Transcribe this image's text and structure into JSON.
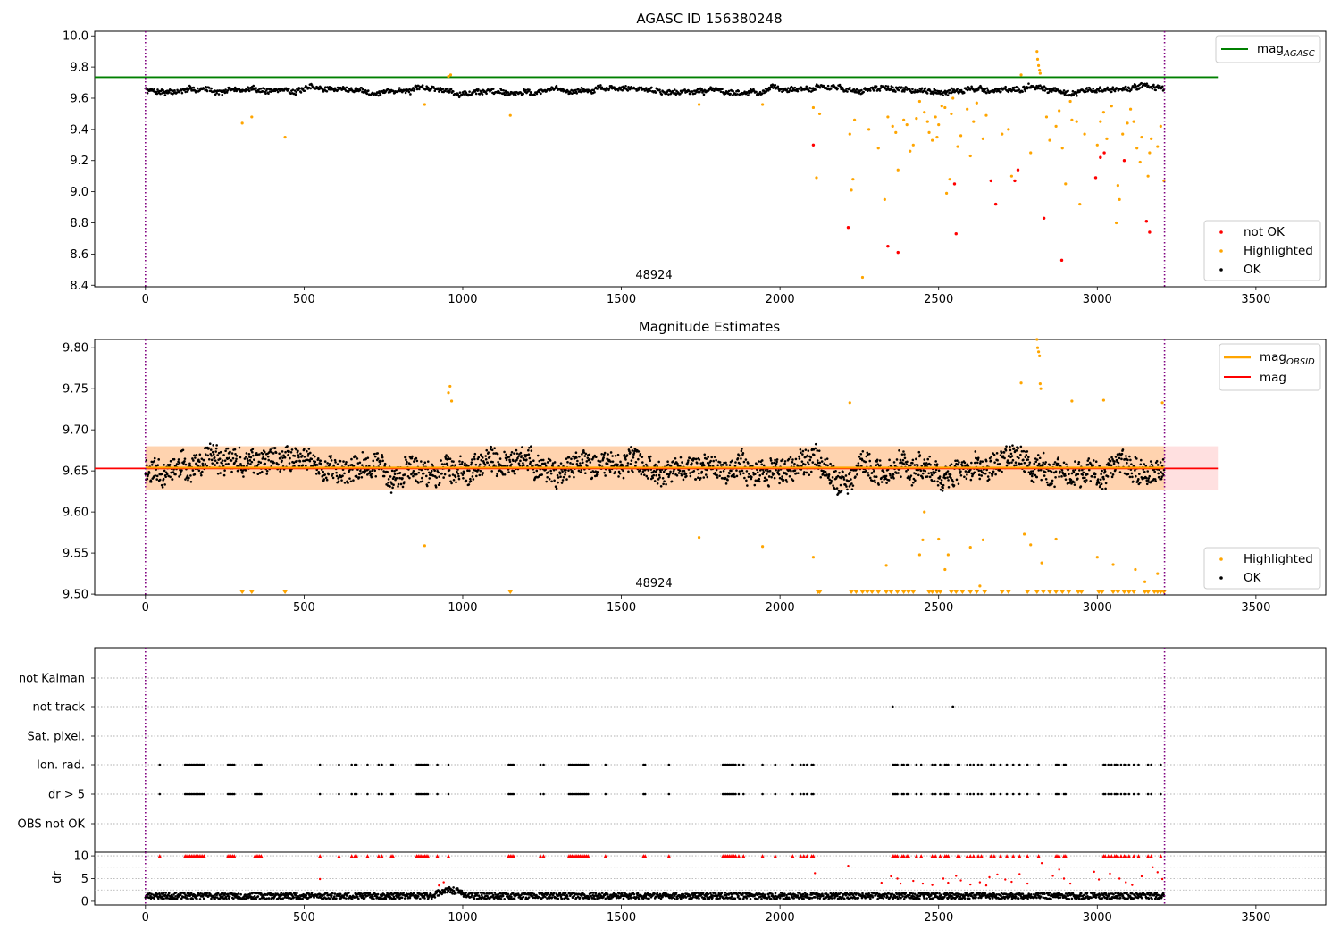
{
  "chart_data": [
    {
      "type": "scatter",
      "title": "AGASC ID 156380248",
      "xlim": [
        -160,
        3720
      ],
      "ylim": [
        8.39,
        10.03
      ],
      "xticks": [
        0,
        500,
        1000,
        1500,
        2000,
        2500,
        3000,
        3500
      ],
      "yticks": [
        8.4,
        8.6,
        8.8,
        9.0,
        9.2,
        9.4,
        9.6,
        9.8,
        10.0
      ],
      "ytick_labels": [
        "8.4",
        "8.6",
        "8.8",
        "9.0",
        "9.2",
        "9.4",
        "9.6",
        "9.8",
        "10.0"
      ],
      "obsid_label": "48924",
      "obsid_label_x": 1605,
      "obs_bounds": [
        0,
        3212
      ],
      "mag_agasc": 9.735,
      "mag_agasc_x_end": 3380,
      "ok_mean": 9.654,
      "ok_noise": 0.018,
      "legend": {
        "line_label": "mag",
        "line_sub": "AGASC",
        "not_ok": "not OK",
        "highlighted": "Highlighted",
        "ok": "OK"
      },
      "highlighted_points": [
        [
          305,
          9.44
        ],
        [
          335,
          9.48
        ],
        [
          440,
          9.35
        ],
        [
          880,
          9.56
        ],
        [
          955,
          9.74
        ],
        [
          962,
          9.75
        ],
        [
          1150,
          9.49
        ],
        [
          1745,
          9.56
        ],
        [
          1945,
          9.56
        ],
        [
          2105,
          9.54
        ],
        [
          2115,
          9.09
        ],
        [
          2125,
          9.5
        ],
        [
          2220,
          9.37
        ],
        [
          2225,
          9.01
        ],
        [
          2230,
          9.08
        ],
        [
          2235,
          9.46
        ],
        [
          2260,
          8.45
        ],
        [
          2280,
          9.4
        ],
        [
          2310,
          9.28
        ],
        [
          2330,
          8.95
        ],
        [
          2340,
          9.48
        ],
        [
          2355,
          9.42
        ],
        [
          2365,
          9.38
        ],
        [
          2372,
          9.14
        ],
        [
          2390,
          9.46
        ],
        [
          2400,
          9.43
        ],
        [
          2410,
          9.26
        ],
        [
          2420,
          9.3
        ],
        [
          2430,
          9.47
        ],
        [
          2440,
          9.58
        ],
        [
          2455,
          9.51
        ],
        [
          2465,
          9.45
        ],
        [
          2470,
          9.38
        ],
        [
          2480,
          9.33
        ],
        [
          2490,
          9.48
        ],
        [
          2495,
          9.35
        ],
        [
          2500,
          9.43
        ],
        [
          2510,
          9.55
        ],
        [
          2520,
          9.54
        ],
        [
          2525,
          8.99
        ],
        [
          2535,
          9.08
        ],
        [
          2540,
          9.5
        ],
        [
          2545,
          9.6
        ],
        [
          2560,
          9.29
        ],
        [
          2570,
          9.36
        ],
        [
          2590,
          9.53
        ],
        [
          2600,
          9.23
        ],
        [
          2610,
          9.45
        ],
        [
          2620,
          9.57
        ],
        [
          2640,
          9.34
        ],
        [
          2650,
          9.49
        ],
        [
          2700,
          9.37
        ],
        [
          2720,
          9.4
        ],
        [
          2730,
          9.1
        ],
        [
          2760,
          9.75
        ],
        [
          2790,
          9.25
        ],
        [
          2810,
          9.9
        ],
        [
          2812,
          9.85
        ],
        [
          2815,
          9.81
        ],
        [
          2818,
          9.78
        ],
        [
          2820,
          9.76
        ],
        [
          2840,
          9.48
        ],
        [
          2850,
          9.33
        ],
        [
          2870,
          9.42
        ],
        [
          2880,
          9.52
        ],
        [
          2890,
          9.28
        ],
        [
          2900,
          9.05
        ],
        [
          2915,
          9.58
        ],
        [
          2920,
          9.46
        ],
        [
          2935,
          9.45
        ],
        [
          2945,
          8.92
        ],
        [
          2960,
          9.37
        ],
        [
          3000,
          9.3
        ],
        [
          3010,
          9.45
        ],
        [
          3020,
          9.51
        ],
        [
          3030,
          9.34
        ],
        [
          3045,
          9.55
        ],
        [
          3060,
          8.8
        ],
        [
          3065,
          9.04
        ],
        [
          3070,
          8.95
        ],
        [
          3080,
          9.37
        ],
        [
          3095,
          9.44
        ],
        [
          3105,
          9.53
        ],
        [
          3115,
          9.45
        ],
        [
          3125,
          9.28
        ],
        [
          3135,
          9.19
        ],
        [
          3140,
          9.35
        ],
        [
          3160,
          9.1
        ],
        [
          3165,
          9.25
        ],
        [
          3170,
          9.34
        ],
        [
          3190,
          9.29
        ],
        [
          3200,
          9.42
        ],
        [
          3210,
          9.07
        ]
      ],
      "not_ok_points": [
        [
          2105,
          9.3
        ],
        [
          2215,
          8.77
        ],
        [
          2340,
          8.65
        ],
        [
          2372,
          8.61
        ],
        [
          2550,
          9.05
        ],
        [
          2555,
          8.73
        ],
        [
          2665,
          9.07
        ],
        [
          2680,
          8.92
        ],
        [
          2740,
          9.07
        ],
        [
          2750,
          9.14
        ],
        [
          2832,
          8.83
        ],
        [
          2888,
          8.56
        ],
        [
          2995,
          9.09
        ],
        [
          3010,
          9.22
        ],
        [
          3022,
          9.25
        ],
        [
          3085,
          9.2
        ],
        [
          3155,
          8.81
        ],
        [
          3165,
          8.74
        ]
      ]
    },
    {
      "type": "scatter",
      "title": "Magnitude Estimates",
      "xlim": [
        -160,
        3720
      ],
      "ylim": [
        9.499,
        9.81
      ],
      "xticks": [
        0,
        500,
        1000,
        1500,
        2000,
        2500,
        3000,
        3500
      ],
      "yticks": [
        9.5,
        9.55,
        9.6,
        9.65,
        9.7,
        9.75,
        9.8
      ],
      "ytick_labels": [
        "9.50",
        "9.55",
        "9.60",
        "9.65",
        "9.70",
        "9.75",
        "9.80"
      ],
      "obsid_label": "48924",
      "obsid_label_x": 1605,
      "obs_bounds": [
        0,
        3212
      ],
      "mag_obsid": 9.654,
      "mag": 9.653,
      "band_orange": [
        9.627,
        9.68
      ],
      "band_pink": [
        9.627,
        9.68
      ],
      "band_x_end": 3380,
      "ok_mean": 9.654,
      "ok_noise": 0.022,
      "legend": {
        "obsid_label": "mag",
        "obsid_sub": "OBSID",
        "mag_label": "mag",
        "highlighted": "Highlighted",
        "ok": "OK"
      },
      "highlighted_points": [
        [
          880,
          9.559
        ],
        [
          955,
          9.745
        ],
        [
          960,
          9.753
        ],
        [
          965,
          9.735
        ],
        [
          1945,
          9.558
        ],
        [
          1745,
          9.569
        ],
        [
          2105,
          9.545
        ],
        [
          2220,
          9.733
        ],
        [
          2335,
          9.535
        ],
        [
          2440,
          9.548
        ],
        [
          2450,
          9.566
        ],
        [
          2455,
          9.6
        ],
        [
          2500,
          9.567
        ],
        [
          2520,
          9.53
        ],
        [
          2530,
          9.548
        ],
        [
          2600,
          9.557
        ],
        [
          2630,
          9.51
        ],
        [
          2640,
          9.566
        ],
        [
          2760,
          9.757
        ],
        [
          2770,
          9.573
        ],
        [
          2790,
          9.56
        ],
        [
          2810,
          9.81
        ],
        [
          2812,
          9.8
        ],
        [
          2815,
          9.795
        ],
        [
          2818,
          9.79
        ],
        [
          2820,
          9.756
        ],
        [
          2822,
          9.75
        ],
        [
          2825,
          9.538
        ],
        [
          2870,
          9.567
        ],
        [
          2920,
          9.735
        ],
        [
          3000,
          9.545
        ],
        [
          3020,
          9.736
        ],
        [
          3050,
          9.536
        ],
        [
          3120,
          9.53
        ],
        [
          3150,
          9.515
        ],
        [
          3190,
          9.525
        ],
        [
          3205,
          9.733
        ]
      ],
      "floor_markers_x": [
        305,
        335,
        440,
        1150,
        2120,
        2125,
        2225,
        2240,
        2260,
        2275,
        2290,
        2310,
        2335,
        2350,
        2370,
        2390,
        2405,
        2420,
        2470,
        2480,
        2495,
        2505,
        2540,
        2555,
        2575,
        2600,
        2620,
        2645,
        2700,
        2720,
        2780,
        2810,
        2830,
        2850,
        2870,
        2890,
        2910,
        2940,
        2950,
        3005,
        3015,
        3050,
        3065,
        3085,
        3100,
        3115,
        3150,
        3160,
        3180,
        3190,
        3200,
        3210
      ]
    },
    {
      "type": "scatter",
      "title": "",
      "xlim": [
        -160,
        3720
      ],
      "xticks": [
        0,
        500,
        1000,
        1500,
        2000,
        2500,
        3000,
        3500
      ],
      "categories": [
        "not Kalman",
        "not track",
        "Sat. pixel.",
        "Ion. rad.",
        "dr > 5",
        "OBS not OK"
      ],
      "obs_bounds": [
        0,
        3212
      ],
      "not_track_x": [
        2355,
        2545
      ],
      "flag_x": [
        45,
        125,
        130,
        135,
        140,
        145,
        150,
        155,
        160,
        165,
        170,
        175,
        180,
        185,
        260,
        265,
        270,
        275,
        280,
        345,
        350,
        355,
        360,
        365,
        550,
        610,
        650,
        660,
        665,
        700,
        735,
        745,
        775,
        780,
        855,
        860,
        865,
        870,
        875,
        880,
        885,
        890,
        920,
        955,
        1145,
        1150,
        1155,
        1160,
        1245,
        1255,
        1335,
        1340,
        1345,
        1350,
        1355,
        1360,
        1365,
        1370,
        1375,
        1380,
        1385,
        1390,
        1395,
        1450,
        1570,
        1575,
        1650,
        1820,
        1825,
        1830,
        1835,
        1840,
        1845,
        1850,
        1855,
        1860,
        1870,
        1885,
        1945,
        1985,
        2040,
        2065,
        2075,
        2085,
        2100,
        2105,
        2355,
        2360,
        2365,
        2370,
        2385,
        2390,
        2400,
        2405,
        2430,
        2445,
        2480,
        2490,
        2505,
        2520,
        2525,
        2530,
        2560,
        2565,
        2590,
        2600,
        2610,
        2625,
        2635,
        2665,
        2675,
        2695,
        2715,
        2735,
        2755,
        2780,
        2815,
        2870,
        2875,
        2880,
        2895,
        2900,
        3020,
        3025,
        3035,
        3045,
        3055,
        3060,
        3065,
        3075,
        3085,
        3090,
        3100,
        3115,
        3130,
        3160,
        3170,
        3200
      ],
      "dr_ylabel": "dr",
      "dr_ylim": [
        -0.8,
        10.8
      ],
      "dr_yticks": [
        0,
        5,
        10
      ],
      "dr_ytick_labels": [
        "0",
        "5",
        "10"
      ],
      "dr_cap": 10,
      "dr_ok_mean": 1.2,
      "dr_hump": {
        "x0": 900,
        "x1": 1020,
        "height": 1.2
      },
      "dr_red_points": [
        [
          550,
          4.9
        ],
        [
          925,
          3.5
        ],
        [
          940,
          4.2
        ],
        [
          2110,
          6.2
        ],
        [
          2215,
          7.8
        ],
        [
          2320,
          4.1
        ],
        [
          2350,
          5.5
        ],
        [
          2370,
          5.0
        ],
        [
          2380,
          3.9
        ],
        [
          2420,
          4.5
        ],
        [
          2450,
          3.9
        ],
        [
          2480,
          3.6
        ],
        [
          2515,
          5.0
        ],
        [
          2530,
          4.1
        ],
        [
          2555,
          5.6
        ],
        [
          2570,
          4.6
        ],
        [
          2600,
          3.7
        ],
        [
          2630,
          4.2
        ],
        [
          2650,
          3.5
        ],
        [
          2660,
          5.3
        ],
        [
          2685,
          5.9
        ],
        [
          2710,
          4.8
        ],
        [
          2730,
          4.3
        ],
        [
          2755,
          6.0
        ],
        [
          2780,
          3.9
        ],
        [
          2825,
          8.4
        ],
        [
          2860,
          5.6
        ],
        [
          2880,
          7.0
        ],
        [
          2895,
          5.0
        ],
        [
          2915,
          3.9
        ],
        [
          2990,
          6.5
        ],
        [
          3005,
          4.8
        ],
        [
          3040,
          6.1
        ],
        [
          3070,
          5.0
        ],
        [
          3090,
          4.2
        ],
        [
          3110,
          3.6
        ],
        [
          3140,
          5.5
        ],
        [
          3175,
          7.5
        ],
        [
          3190,
          6.4
        ],
        [
          3205,
          4.9
        ]
      ]
    }
  ]
}
